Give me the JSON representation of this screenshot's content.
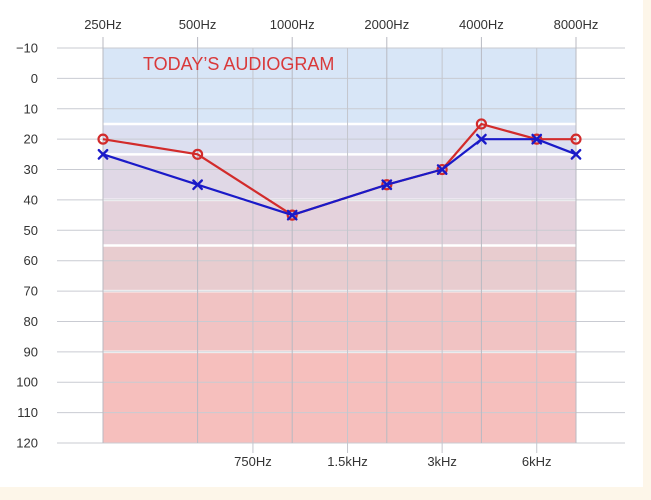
{
  "chart_data": {
    "type": "line",
    "title": "TODAY’S AUDIOGRAM",
    "xlabel": "",
    "ylabel": "",
    "x_scale": "log",
    "y_inverted": true,
    "ylim": [
      -10,
      120
    ],
    "xlim_hz": [
      250,
      8000
    ],
    "grid": true,
    "x_ticks_top": [
      {
        "hz": 250,
        "label": "250Hz"
      },
      {
        "hz": 500,
        "label": "500Hz"
      },
      {
        "hz": 1000,
        "label": "1000Hz"
      },
      {
        "hz": 2000,
        "label": "2000Hz"
      },
      {
        "hz": 4000,
        "label": "4000Hz"
      },
      {
        "hz": 8000,
        "label": "8000Hz"
      }
    ],
    "x_ticks_bottom": [
      {
        "hz": 750,
        "label": "750Hz"
      },
      {
        "hz": 1500,
        "label": "1.5kHz"
      },
      {
        "hz": 3000,
        "label": "3kHz"
      },
      {
        "hz": 6000,
        "label": "6kHz"
      }
    ],
    "y_ticks": [
      {
        "value": -10,
        "label": "−10"
      },
      {
        "value": 0,
        "label": "0"
      },
      {
        "value": 10,
        "label": "10"
      },
      {
        "value": 20,
        "label": "20"
      },
      {
        "value": 30,
        "label": "30"
      },
      {
        "value": 40,
        "label": "40"
      },
      {
        "value": 50,
        "label": "50"
      },
      {
        "value": 60,
        "label": "60"
      },
      {
        "value": 70,
        "label": "70"
      },
      {
        "value": 80,
        "label": "80"
      },
      {
        "value": 90,
        "label": "90"
      },
      {
        "value": 100,
        "label": "100"
      },
      {
        "value": 110,
        "label": "110"
      },
      {
        "value": 120,
        "label": "120"
      }
    ],
    "bands": [
      {
        "from": -10,
        "to": 15,
        "color": "#d8e6f7"
      },
      {
        "from": 15,
        "to": 25,
        "color": "#dcdff0"
      },
      {
        "from": 25,
        "to": 40,
        "color": "#e0d8e6"
      },
      {
        "from": 40,
        "to": 55,
        "color": "#e4d2dc"
      },
      {
        "from": 55,
        "to": 70,
        "color": "#e8cccf"
      },
      {
        "from": 70,
        "to": 90,
        "color": "#f1c3c3"
      },
      {
        "from": 90,
        "to": 120,
        "color": "#f6bfbd"
      }
    ],
    "series": [
      {
        "marker": "circle",
        "color": "#d22b2b",
        "points": [
          {
            "hz": 250,
            "db": 20
          },
          {
            "hz": 500,
            "db": 25
          },
          {
            "hz": 1000,
            "db": 45
          },
          {
            "hz": 2000,
            "db": 35
          },
          {
            "hz": 3000,
            "db": 30
          },
          {
            "hz": 4000,
            "db": 15
          },
          {
            "hz": 6000,
            "db": 20
          },
          {
            "hz": 8000,
            "db": 20
          }
        ]
      },
      {
        "marker": "cross",
        "color": "#1a1ac8",
        "points": [
          {
            "hz": 250,
            "db": 25
          },
          {
            "hz": 500,
            "db": 35
          },
          {
            "hz": 1000,
            "db": 45
          },
          {
            "hz": 2000,
            "db": 35
          },
          {
            "hz": 3000,
            "db": 30
          },
          {
            "hz": 4000,
            "db": 20
          },
          {
            "hz": 6000,
            "db": 20
          },
          {
            "hz": 8000,
            "db": 25
          }
        ]
      }
    ]
  }
}
